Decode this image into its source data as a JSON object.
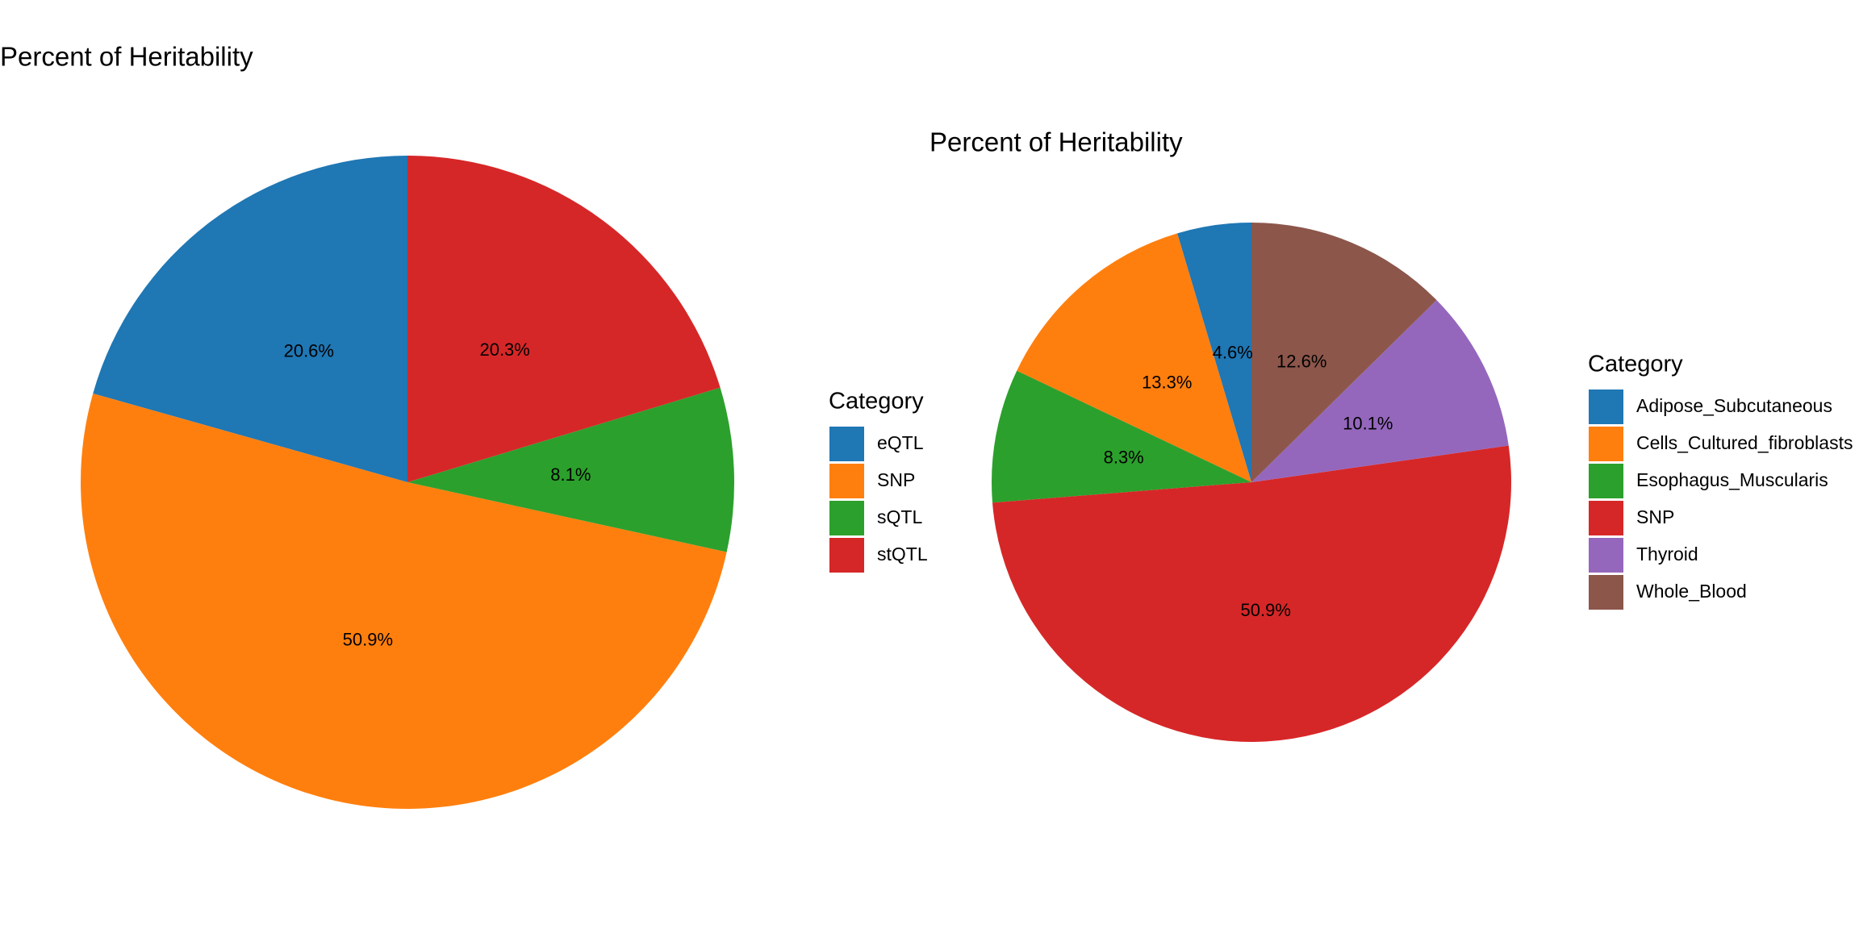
{
  "chart_data": [
    {
      "type": "pie",
      "title": "Percent of Heritability",
      "legend_title": "Category",
      "categories": [
        "eQTL",
        "SNP",
        "sQTL",
        "stQTL"
      ],
      "values": [
        20.6,
        50.9,
        8.1,
        20.3
      ],
      "value_labels": [
        "20.6%",
        "50.9%",
        "8.1%",
        "20.3%"
      ],
      "colors": [
        "#1f77b4",
        "#ff7f0e",
        "#2ca02c",
        "#d62728"
      ]
    },
    {
      "type": "pie",
      "title": "Percent of Heritability",
      "legend_title": "Category",
      "categories": [
        "Adipose_Subcutaneous",
        "Cells_Cultured_fibroblasts",
        "Esophagus_Muscularis",
        "SNP",
        "Thyroid",
        "Whole_Blood"
      ],
      "values": [
        4.6,
        13.3,
        8.3,
        50.9,
        10.1,
        12.6
      ],
      "value_labels": [
        "4.6%",
        "13.3%",
        "8.3%",
        "50.9%",
        "10.1%",
        "12.6%"
      ],
      "colors": [
        "#1f77b4",
        "#ff7f0e",
        "#2ca02c",
        "#d62728",
        "#9467bd",
        "#8c564b"
      ]
    }
  ]
}
